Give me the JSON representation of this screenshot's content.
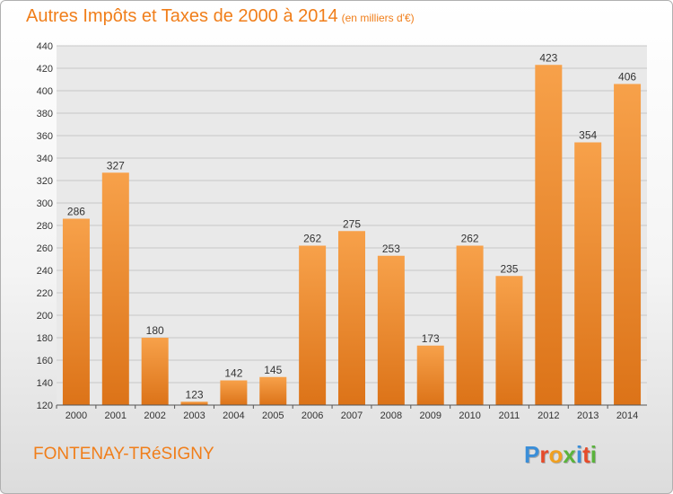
{
  "chart_data": {
    "type": "bar",
    "title": "Autres Impôts et Taxes de 2000 à 2014",
    "subtitle": "(en milliers d'€)",
    "categories": [
      "2000",
      "2001",
      "2002",
      "2003",
      "2004",
      "2005",
      "2006",
      "2007",
      "2008",
      "2009",
      "2010",
      "2011",
      "2012",
      "2013",
      "2014"
    ],
    "values": [
      286,
      327,
      180,
      123,
      142,
      145,
      262,
      275,
      253,
      173,
      262,
      235,
      423,
      354,
      406
    ],
    "ylim": [
      120,
      440
    ],
    "yticks": [
      120,
      140,
      160,
      180,
      200,
      220,
      240,
      260,
      280,
      300,
      320,
      340,
      360,
      380,
      400,
      420,
      440
    ],
    "grid": true,
    "xlabel": "",
    "ylabel": ""
  },
  "commune": "FONTENAY-TRéSIGNY",
  "logo": {
    "letters": [
      "P",
      "r",
      "o",
      "x",
      "i",
      "t",
      "i"
    ],
    "colors": [
      "#3a8ed8",
      "#e64b2a",
      "#f0a020",
      "#5ab33c",
      "#3a8ed8",
      "#e64b2a",
      "#5ab33c"
    ]
  },
  "colors": {
    "accent": "#f07e1a",
    "bar_top": "#f7a14a",
    "bar_bottom": "#dc7318"
  }
}
